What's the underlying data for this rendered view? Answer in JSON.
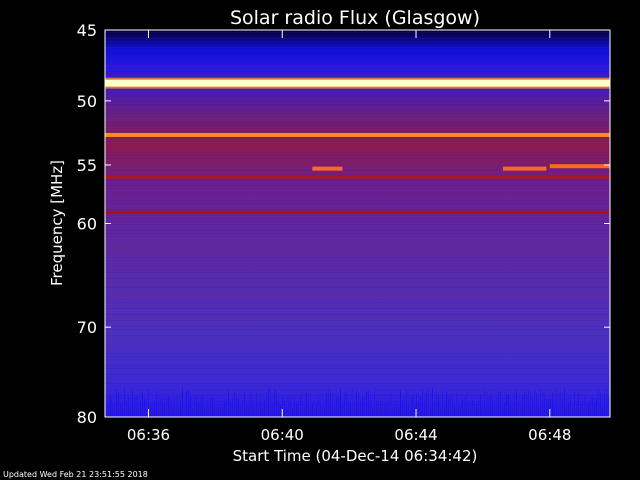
{
  "chart_data": {
    "type": "heatmap",
    "title": "Solar radio Flux (Glasgow)",
    "xlabel": "Start Time (04-Dec-14 06:34:42)",
    "ylabel": "Frequency [MHz]",
    "x_unit": "minutes after 06:34:42",
    "xlim": [
      0,
      15.1
    ],
    "ylim": [
      45,
      80
    ],
    "y_scale": "log",
    "x_ticks": [
      {
        "label": "06:36",
        "value": 1.3
      },
      {
        "label": "06:40",
        "value": 5.3
      },
      {
        "label": "06:44",
        "value": 9.3
      },
      {
        "label": "06:48",
        "value": 13.3
      }
    ],
    "y_ticks": [
      {
        "label": "45",
        "value": 45
      },
      {
        "label": "50",
        "value": 50
      },
      {
        "label": "55",
        "value": 55
      },
      {
        "label": "60",
        "value": 60
      },
      {
        "label": "70",
        "value": 70
      },
      {
        "label": "80",
        "value": 80
      }
    ],
    "colormap": [
      "#00003a",
      "#1010d8",
      "#4a30d0",
      "#5a2aa8",
      "#8a1a50",
      "#b01818",
      "#ff6a20",
      "#ffffc8"
    ],
    "emission_lines": [
      {
        "freq_mhz": 48.7,
        "x_start": 0,
        "x_end": 15.1,
        "level": "very high",
        "color": "#ffffc8"
      },
      {
        "freq_mhz": 52.6,
        "x_start": 0,
        "x_end": 15.1,
        "level": "high",
        "color": "#ff8a20"
      },
      {
        "freq_mhz": 55.3,
        "x_start": 6.2,
        "x_end": 7.1,
        "level": "high",
        "color": "#ff6a20"
      },
      {
        "freq_mhz": 55.3,
        "x_start": 11.9,
        "x_end": 13.2,
        "level": "high",
        "color": "#ff6a20"
      },
      {
        "freq_mhz": 55.1,
        "x_start": 13.3,
        "x_end": 15.1,
        "level": "high",
        "color": "#ff6a20"
      },
      {
        "freq_mhz": 56.0,
        "x_start": 0,
        "x_end": 15.1,
        "level": "medium",
        "color": "#b01818"
      },
      {
        "freq_mhz": 59.0,
        "x_start": 0,
        "x_end": 15.1,
        "level": "medium",
        "color": "#a01420"
      }
    ]
  },
  "footer": {
    "updated": "Updated Wed Feb 21 23:51:55 2018"
  }
}
